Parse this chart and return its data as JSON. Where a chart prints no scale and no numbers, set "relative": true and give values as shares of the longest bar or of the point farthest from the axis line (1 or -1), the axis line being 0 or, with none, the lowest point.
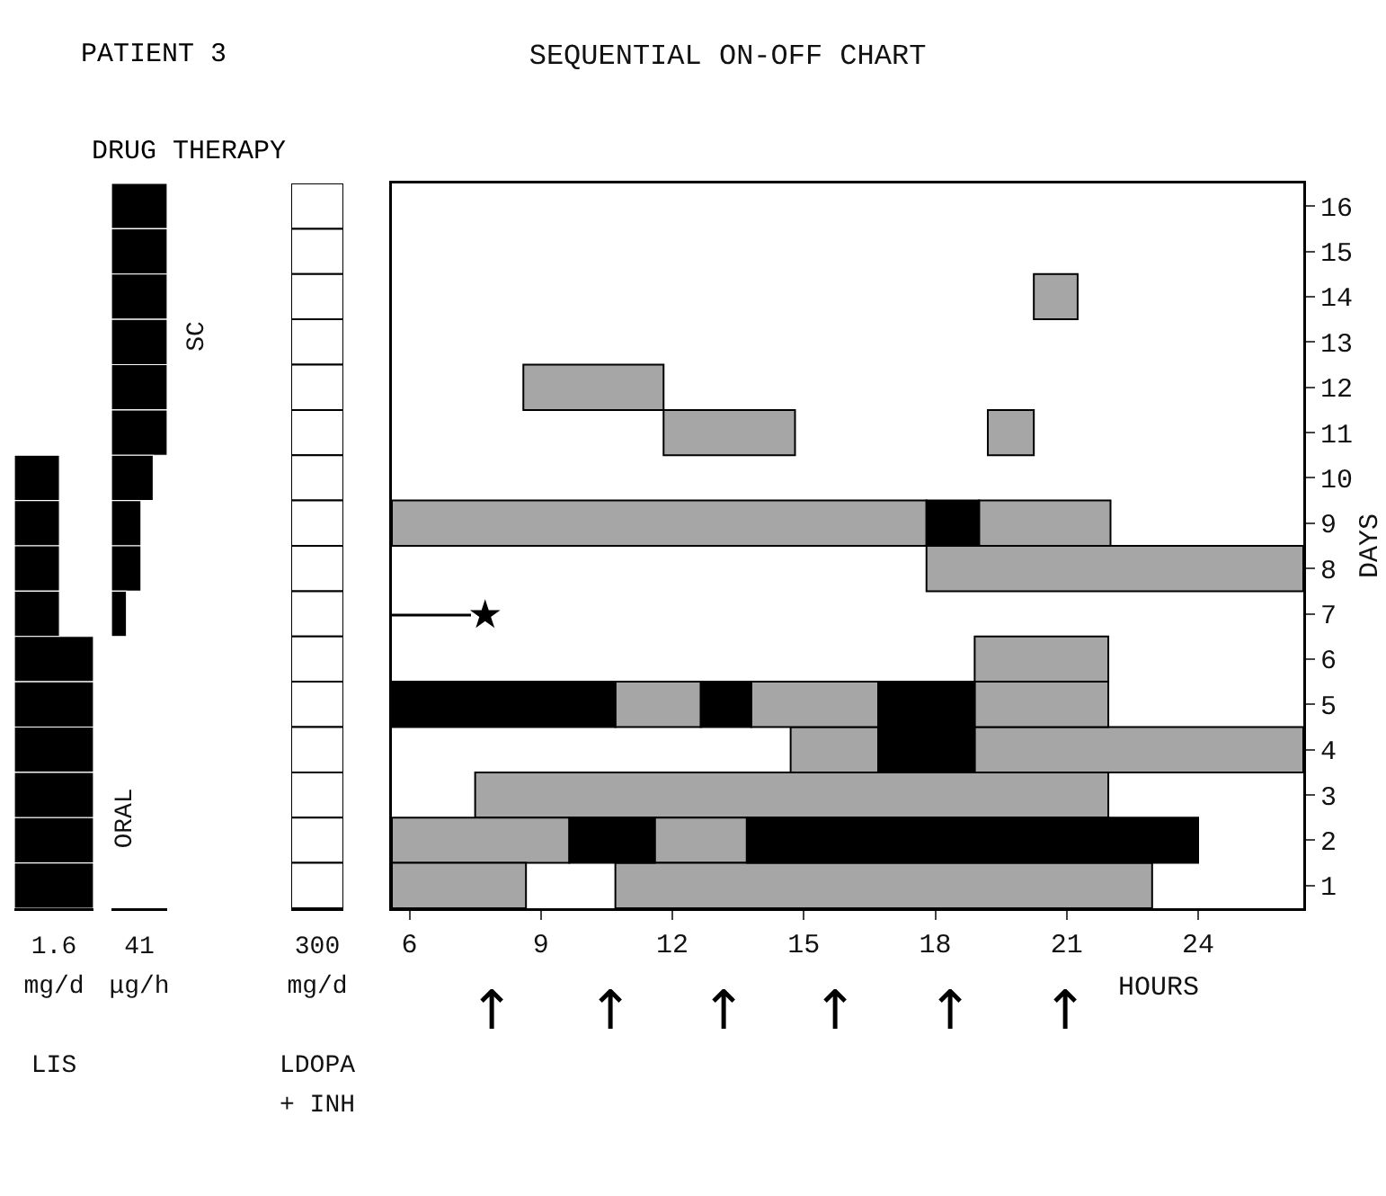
{
  "chart_data": [
    {
      "type": "bar",
      "orientation": "horizontal",
      "relative": true,
      "title": "LIS",
      "xlabel": "1.6 mg/d",
      "color": "#000000",
      "categories": [
        null,
        null,
        null,
        null,
        null,
        null,
        null,
        null,
        null,
        null
      ],
      "values": [
        0.57,
        0.57,
        0.57,
        0.57,
        1,
        1,
        1,
        1,
        1,
        1
      ]
    },
    {
      "type": "bar",
      "orientation": "horizontal",
      "relative": true,
      "xlabel": "41 μg/h",
      "color": "#000000",
      "annotations": [
        "SC",
        "ORAL"
      ],
      "categories": [
        null,
        null,
        null,
        null,
        null,
        null,
        null,
        null,
        null,
        null
      ],
      "values": [
        1,
        1,
        1,
        1,
        1,
        1,
        0.75,
        0.53,
        0.53,
        0.27
      ]
    },
    {
      "type": "bar",
      "orientation": "horizontal",
      "relative": true,
      "title": "LDOPA + INH",
      "xlabel": "300 mg/d",
      "color": "#ffffff",
      "categories": [
        null,
        null,
        null,
        null,
        null,
        null,
        null,
        null,
        null,
        null,
        null,
        null,
        null,
        null,
        null,
        null
      ],
      "values": [
        1,
        1,
        1,
        1,
        1,
        1,
        1,
        1,
        1,
        1,
        1,
        1,
        1,
        1,
        1,
        1
      ]
    },
    {
      "type": "bar",
      "orientation": "horizontal",
      "title": "SEQUENTIAL ON-OFF CHART",
      "xlabel": "HOURS",
      "ylabel": "DAYS",
      "categories": [
        "16",
        "15",
        "14",
        "13",
        "12",
        "11",
        "10",
        "9",
        "8",
        "7",
        "6",
        "5",
        "4",
        "3",
        "2",
        "1"
      ],
      "xlim": [
        5.6,
        26.4
      ],
      "xticks": [
        6,
        9,
        12,
        15,
        18,
        21,
        24
      ],
      "series": [
        {
          "color": "#a6a6a6",
          "values": [
            null,
            null,
            1.0,
            null,
            3.2,
            3.0,
            null,
            12.2,
            8.6,
            null,
            3.05,
            1.95,
            2.0,
            14.45,
            4.05,
            3.06
          ],
          "base": [
            null,
            null,
            20.25,
            null,
            8.6,
            11.8,
            null,
            5.6,
            17.8,
            null,
            18.9,
            10.7,
            14.7,
            7.5,
            5.6,
            5.6
          ]
        },
        {
          "color": "#a6a6a6",
          "values": [
            null,
            null,
            null,
            null,
            null,
            1.05,
            null,
            3.0,
            null,
            null,
            null,
            2.9,
            7.5,
            null,
            2.1,
            12.25
          ],
          "base": [
            null,
            null,
            null,
            null,
            null,
            19.2,
            null,
            19.0,
            null,
            null,
            null,
            13.8,
            18.9,
            null,
            11.6,
            10.7
          ]
        },
        {
          "color": "#a6a6a6",
          "values": [
            null,
            null,
            null,
            null,
            null,
            null,
            null,
            null,
            null,
            null,
            null,
            3.05,
            null,
            null,
            null,
            null
          ],
          "base": [
            null,
            null,
            null,
            null,
            null,
            null,
            null,
            null,
            null,
            null,
            null,
            18.9,
            null,
            null,
            null,
            null
          ]
        },
        {
          "color": "#000000",
          "values": [
            null,
            null,
            null,
            null,
            null,
            null,
            null,
            1.2,
            null,
            null,
            null,
            5.1,
            2.2,
            null,
            1.95,
            null
          ],
          "base": [
            null,
            null,
            null,
            null,
            null,
            null,
            null,
            17.8,
            null,
            null,
            null,
            5.6,
            16.7,
            null,
            9.65,
            null
          ]
        },
        {
          "color": "#000000",
          "values": [
            null,
            null,
            null,
            null,
            null,
            null,
            null,
            null,
            null,
            null,
            null,
            1.15,
            null,
            null,
            10.3,
            null
          ],
          "base": [
            null,
            null,
            null,
            null,
            null,
            null,
            null,
            null,
            null,
            null,
            null,
            12.65,
            null,
            null,
            13.7,
            null
          ]
        },
        {
          "color": "#000000",
          "values": [
            null,
            null,
            null,
            null,
            null,
            null,
            null,
            null,
            null,
            null,
            null,
            2.2,
            null,
            null,
            null,
            null
          ],
          "base": [
            null,
            null,
            null,
            null,
            null,
            null,
            null,
            null,
            null,
            null,
            null,
            16.7,
            null,
            null,
            null,
            null
          ]
        }
      ],
      "annotations": [
        "PATIENT 3",
        "★",
        "↑",
        "↑",
        "↑",
        "↑",
        "↑",
        "↑",
        "DRUG THERAPY"
      ]
    }
  ]
}
